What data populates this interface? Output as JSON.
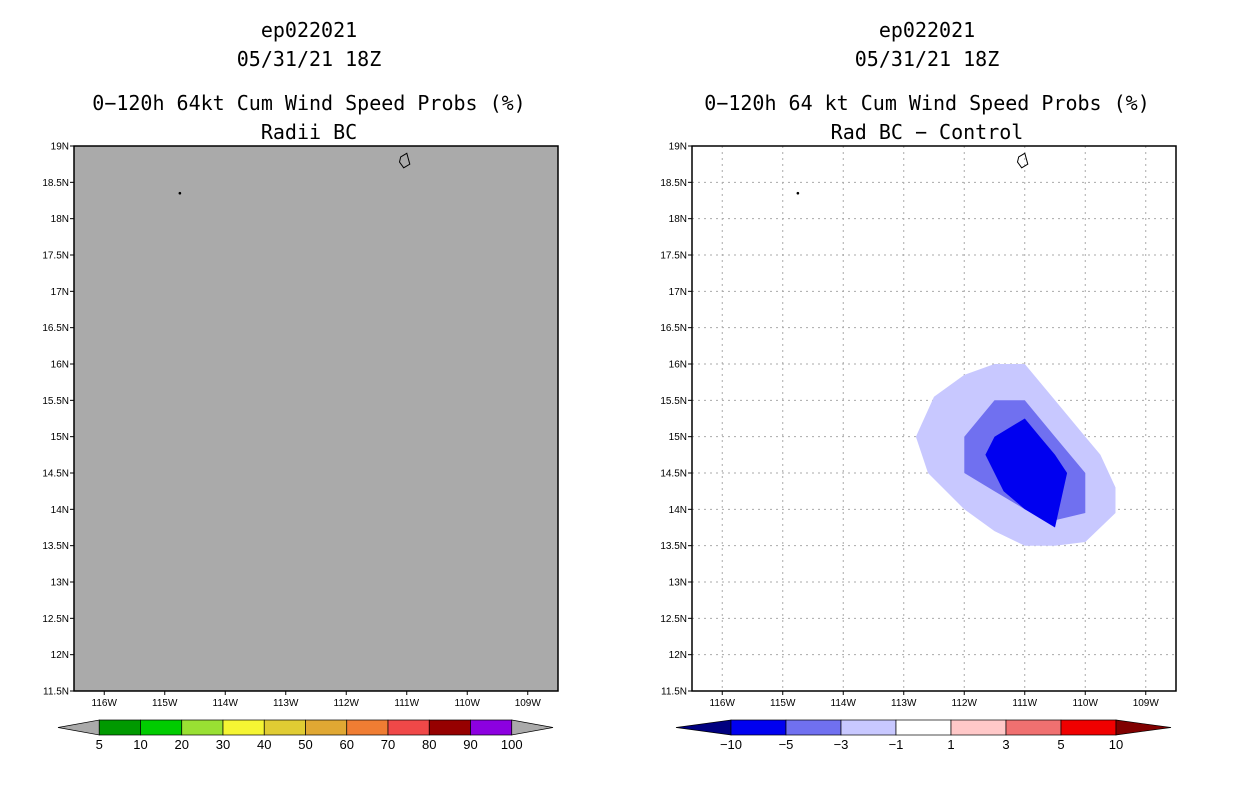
{
  "chart_data": [
    {
      "type": "heatmap",
      "id": "left",
      "title_lines": [
        "ep022021",
        "05/31/21 18Z",
        "0−120h 64kt Cum Wind Speed Probs (%)",
        "Radii BC"
      ],
      "xlim": [
        -116.5,
        -108.5
      ],
      "ylim": [
        11.5,
        19.0
      ],
      "xticks": [
        -116,
        -115,
        -114,
        -113,
        -112,
        -111,
        -110,
        -109
      ],
      "xtick_labels": [
        "116W",
        "115W",
        "114W",
        "113W",
        "112W",
        "111W",
        "110W",
        "109W"
      ],
      "yticks": [
        11.5,
        12,
        12.5,
        13,
        13.5,
        14,
        14.5,
        15,
        15.5,
        16,
        16.5,
        17,
        17.5,
        18,
        18.5,
        19
      ],
      "ytick_labels": [
        "11.5N",
        "12N",
        "12.5N",
        "13N",
        "13.5N",
        "14N",
        "14.5N",
        "15N",
        "15.5N",
        "16N",
        "16.5N",
        "17N",
        "17.5N",
        "18N",
        "18.5N",
        "19N"
      ],
      "field_color": "#aaaaaa",
      "grid": false,
      "colorbar": {
        "colors": [
          "#aaaaaa",
          "#009900",
          "#00cc00",
          "#99e033",
          "#f5f533",
          "#e0cc33",
          "#e0a833",
          "#f07d33",
          "#f04848",
          "#960000",
          "#8c00e0",
          "#aaaaaa"
        ],
        "labels": [
          "5",
          "10",
          "20",
          "30",
          "40",
          "50",
          "60",
          "70",
          "80",
          "90",
          "100"
        ]
      }
    },
    {
      "type": "heatmap",
      "id": "right",
      "title_lines": [
        "ep022021",
        "05/31/21 18Z",
        "0−120h 64 kt Cum Wind Speed Probs (%)",
        "Rad BC − Control"
      ],
      "xlim": [
        -116.5,
        -108.5
      ],
      "ylim": [
        11.5,
        19.0
      ],
      "xticks": [
        -116,
        -115,
        -114,
        -113,
        -112,
        -111,
        -110,
        -109
      ],
      "xtick_labels": [
        "116W",
        "115W",
        "114W",
        "113W",
        "112W",
        "111W",
        "110W",
        "109W"
      ],
      "yticks": [
        11.5,
        12,
        12.5,
        13,
        13.5,
        14,
        14.5,
        15,
        15.5,
        16,
        16.5,
        17,
        17.5,
        18,
        18.5,
        19
      ],
      "ytick_labels": [
        "11.5N",
        "12N",
        "12.5N",
        "13N",
        "13.5N",
        "14N",
        "14.5N",
        "15N",
        "15.5N",
        "16N",
        "16.5N",
        "17N",
        "17.5N",
        "18N",
        "18.5N",
        "19N"
      ],
      "field_color": "#ffffff",
      "grid": true,
      "contours": [
        {
          "level": "-3 to -1",
          "color": "#c8c8ff",
          "points": [
            [
              -111.5,
              16.0
            ],
            [
              -112.0,
              15.85
            ],
            [
              -112.5,
              15.55
            ],
            [
              -112.8,
              15.0
            ],
            [
              -112.6,
              14.5
            ],
            [
              -112.0,
              14.0
            ],
            [
              -111.5,
              13.7
            ],
            [
              -111.0,
              13.5
            ],
            [
              -110.5,
              13.5
            ],
            [
              -110.0,
              13.55
            ],
            [
              -109.5,
              13.95
            ],
            [
              -109.5,
              14.3
            ],
            [
              -109.75,
              14.75
            ],
            [
              -110.0,
              15.0
            ],
            [
              -110.5,
              15.5
            ],
            [
              -111.0,
              16.0
            ]
          ]
        },
        {
          "level": "-5 to -3",
          "color": "#7070f0",
          "points": [
            [
              -111.5,
              15.5
            ],
            [
              -112.0,
              15.0
            ],
            [
              -112.0,
              14.5
            ],
            [
              -111.5,
              14.25
            ],
            [
              -111.0,
              14.0
            ],
            [
              -110.5,
              13.85
            ],
            [
              -110.0,
              13.95
            ],
            [
              -110.0,
              14.5
            ],
            [
              -110.5,
              15.0
            ],
            [
              -111.0,
              15.5
            ]
          ]
        },
        {
          "level": "< -5",
          "color": "#0000f0",
          "points": [
            [
              -111.0,
              15.25
            ],
            [
              -111.5,
              15.0
            ],
            [
              -111.65,
              14.75
            ],
            [
              -111.35,
              14.25
            ],
            [
              -111.0,
              14.0
            ],
            [
              -110.5,
              13.75
            ],
            [
              -110.3,
              14.5
            ],
            [
              -110.5,
              14.75
            ],
            [
              -110.75,
              15.0
            ]
          ]
        }
      ],
      "colorbar": {
        "colors": [
          "#000080",
          "#0000f0",
          "#7070f0",
          "#c8c8ff",
          "#ffffff",
          "#ffc8c8",
          "#f07070",
          "#f00000",
          "#800000"
        ],
        "labels": [
          "−10",
          "−5",
          "−3",
          "−1",
          "1",
          "3",
          "5",
          "10"
        ]
      }
    }
  ]
}
